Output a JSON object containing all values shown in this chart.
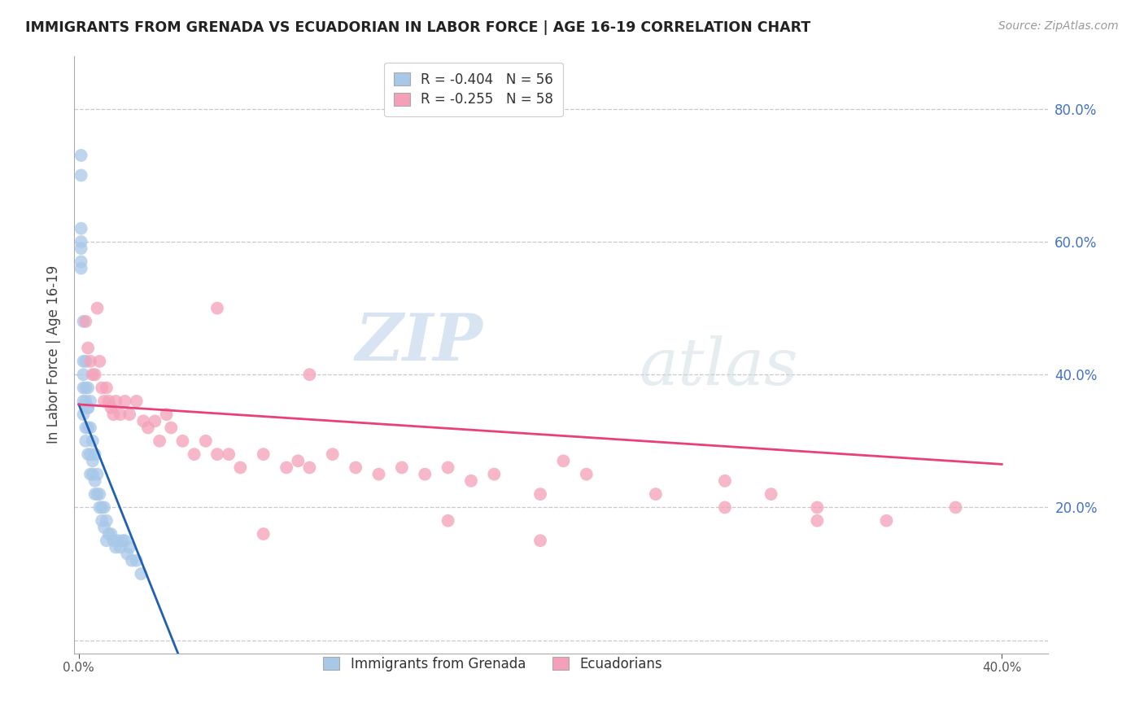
{
  "title": "IMMIGRANTS FROM GRENADA VS ECUADORIAN IN LABOR FORCE | AGE 16-19 CORRELATION CHART",
  "source": "Source: ZipAtlas.com",
  "ylabel": "In Labor Force | Age 16-19",
  "right_yticklabels": [
    "",
    "20.0%",
    "40.0%",
    "60.0%",
    "80.0%"
  ],
  "ytick_vals": [
    0.0,
    0.2,
    0.4,
    0.6,
    0.8
  ],
  "xtick_vals": [
    0.0,
    0.4
  ],
  "xticklabels": [
    "0.0%",
    "40.0%"
  ],
  "xlim": [
    -0.002,
    0.42
  ],
  "ylim": [
    -0.02,
    0.88
  ],
  "legend_labels": [
    "Immigrants from Grenada",
    "Ecuadorians"
  ],
  "legend_R": [
    -0.404,
    -0.255
  ],
  "legend_N": [
    56,
    58
  ],
  "blue_color": "#a8c8e8",
  "blue_line_color": "#2060b0",
  "pink_color": "#f4a0b8",
  "pink_line_color": "#e8407a",
  "watermark_zip": "ZIP",
  "watermark_atlas": "atlas",
  "background_color": "#ffffff",
  "grid_color": "#c8c8d0",
  "right_tick_color": "#4472c4",
  "title_color": "#222222",
  "blue_scatter_x": [
    0.001,
    0.001,
    0.001,
    0.001,
    0.001,
    0.002,
    0.002,
    0.002,
    0.002,
    0.002,
    0.003,
    0.003,
    0.003,
    0.003,
    0.004,
    0.004,
    0.004,
    0.004,
    0.005,
    0.005,
    0.005,
    0.005,
    0.006,
    0.006,
    0.006,
    0.007,
    0.007,
    0.007,
    0.008,
    0.008,
    0.009,
    0.009,
    0.01,
    0.01,
    0.011,
    0.011,
    0.012,
    0.012,
    0.013,
    0.014,
    0.015,
    0.016,
    0.017,
    0.018,
    0.019,
    0.02,
    0.021,
    0.022,
    0.023,
    0.025,
    0.027,
    0.001,
    0.001,
    0.002,
    0.003,
    0.004
  ],
  "blue_scatter_y": [
    0.73,
    0.7,
    0.62,
    0.59,
    0.56,
    0.42,
    0.4,
    0.38,
    0.36,
    0.34,
    0.38,
    0.36,
    0.32,
    0.3,
    0.38,
    0.35,
    0.32,
    0.28,
    0.36,
    0.32,
    0.28,
    0.25,
    0.3,
    0.27,
    0.25,
    0.28,
    0.24,
    0.22,
    0.25,
    0.22,
    0.22,
    0.2,
    0.2,
    0.18,
    0.2,
    0.17,
    0.18,
    0.15,
    0.16,
    0.16,
    0.15,
    0.14,
    0.15,
    0.14,
    0.15,
    0.15,
    0.13,
    0.14,
    0.12,
    0.12,
    0.1,
    0.6,
    0.57,
    0.48,
    0.42,
    0.35
  ],
  "pink_scatter_x": [
    0.003,
    0.004,
    0.005,
    0.006,
    0.007,
    0.008,
    0.009,
    0.01,
    0.011,
    0.012,
    0.013,
    0.014,
    0.015,
    0.016,
    0.018,
    0.02,
    0.022,
    0.025,
    0.028,
    0.03,
    0.033,
    0.035,
    0.038,
    0.04,
    0.045,
    0.05,
    0.055,
    0.06,
    0.065,
    0.07,
    0.08,
    0.09,
    0.095,
    0.1,
    0.11,
    0.12,
    0.13,
    0.14,
    0.15,
    0.16,
    0.17,
    0.18,
    0.2,
    0.21,
    0.22,
    0.25,
    0.28,
    0.3,
    0.32,
    0.35,
    0.38,
    0.06,
    0.08,
    0.16,
    0.2,
    0.32,
    0.28,
    0.1
  ],
  "pink_scatter_y": [
    0.48,
    0.44,
    0.42,
    0.4,
    0.4,
    0.5,
    0.42,
    0.38,
    0.36,
    0.38,
    0.36,
    0.35,
    0.34,
    0.36,
    0.34,
    0.36,
    0.34,
    0.36,
    0.33,
    0.32,
    0.33,
    0.3,
    0.34,
    0.32,
    0.3,
    0.28,
    0.3,
    0.28,
    0.28,
    0.26,
    0.28,
    0.26,
    0.27,
    0.26,
    0.28,
    0.26,
    0.25,
    0.26,
    0.25,
    0.26,
    0.24,
    0.25,
    0.22,
    0.27,
    0.25,
    0.22,
    0.24,
    0.22,
    0.2,
    0.18,
    0.2,
    0.5,
    0.16,
    0.18,
    0.15,
    0.18,
    0.2,
    0.4
  ],
  "blue_line_x0": 0.0,
  "blue_line_x1": 0.043,
  "blue_line_y0": 0.355,
  "blue_line_y1": -0.02,
  "pink_line_x0": 0.0,
  "pink_line_x1": 0.4,
  "pink_line_y0": 0.355,
  "pink_line_y1": 0.265
}
